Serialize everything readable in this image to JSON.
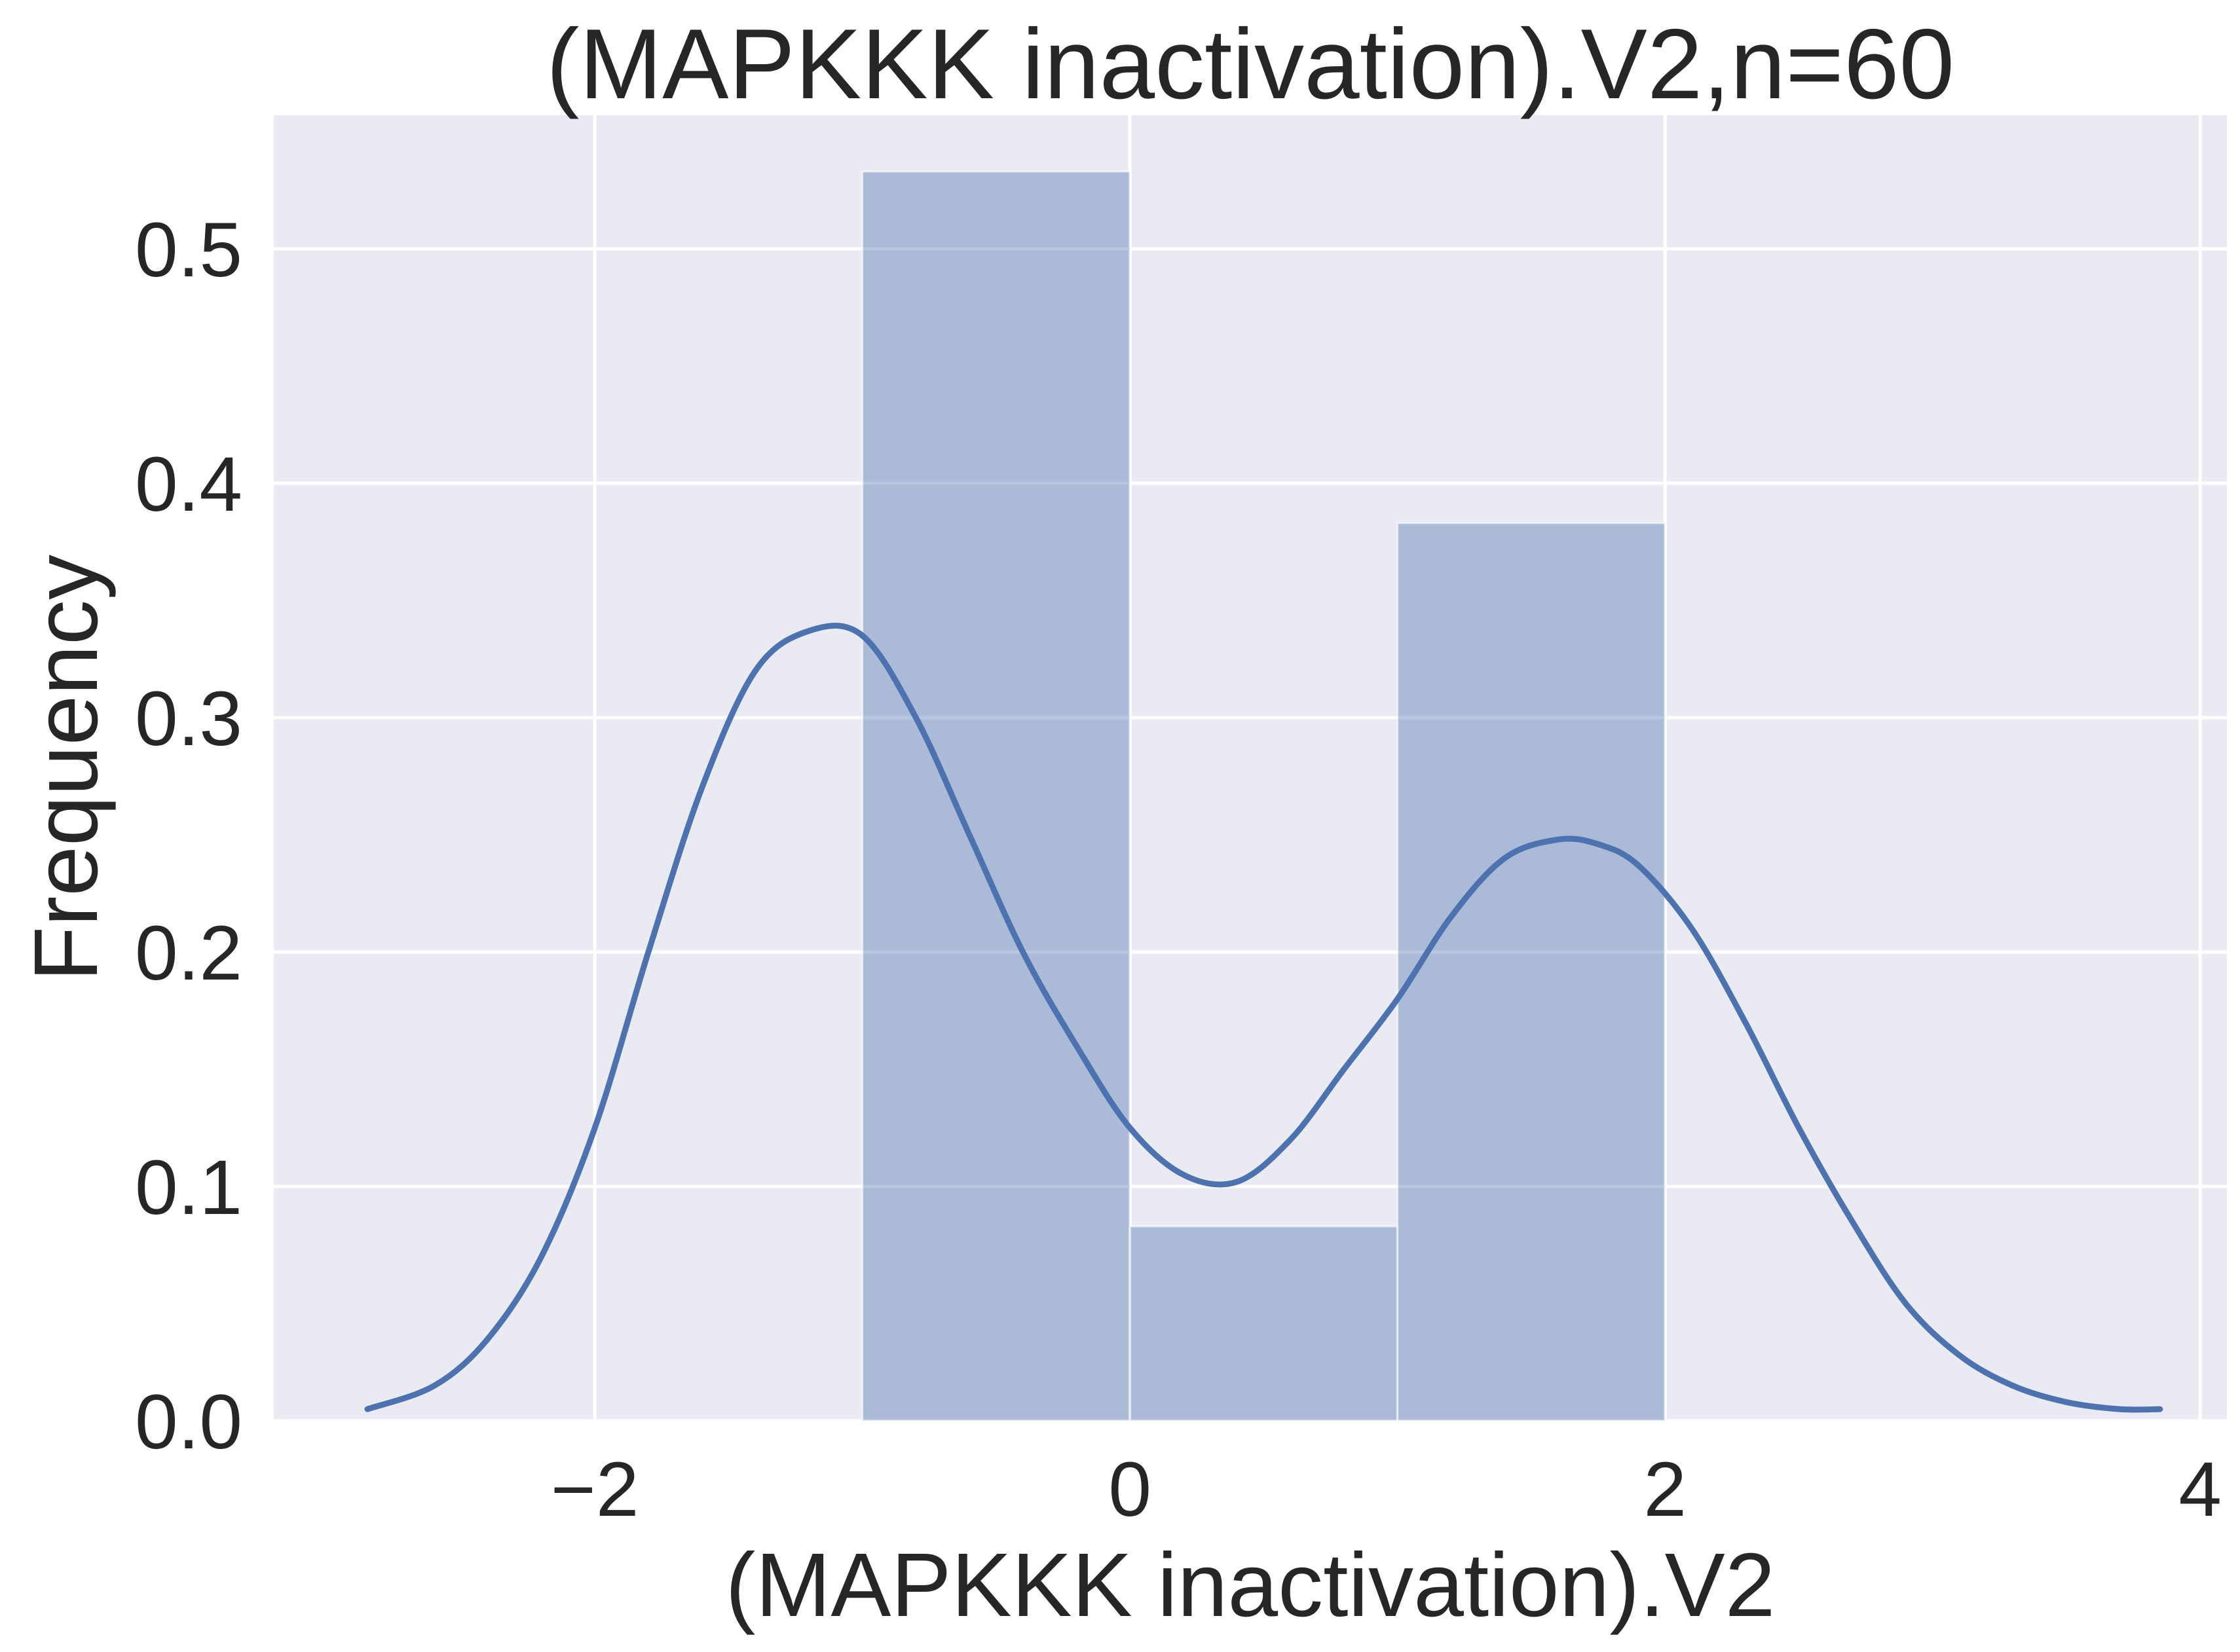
{
  "chart_data": {
    "type": "bar",
    "title": "(MAPKKK inactivation).V2,n=60",
    "xlabel": "(MAPKKK inactivation).V2",
    "ylabel": "Frequency",
    "xlim": [
      -3.2,
      4.1
    ],
    "ylim": [
      0,
      0.557
    ],
    "x_ticks": [
      -2,
      0,
      2,
      4
    ],
    "x_tick_labels": [
      "−2",
      "0",
      "2",
      "4"
    ],
    "y_ticks": [
      0.0,
      0.1,
      0.2,
      0.3,
      0.4,
      0.5
    ],
    "y_tick_labels": [
      "0.0",
      "0.1",
      "0.2",
      "0.3",
      "0.4",
      "0.5"
    ],
    "grid": true,
    "histogram": {
      "bin_edges": [
        -1.0,
        0.0,
        1.0,
        2.0
      ],
      "values": [
        0.533,
        0.083,
        0.383
      ]
    },
    "kde": {
      "x": [
        -2.85,
        -2.6,
        -2.4,
        -2.2,
        -2.0,
        -1.8,
        -1.6,
        -1.4,
        -1.2,
        -1.0,
        -0.8,
        -0.6,
        -0.4,
        -0.2,
        0.0,
        0.2,
        0.4,
        0.6,
        0.8,
        1.0,
        1.2,
        1.4,
        1.6,
        1.75,
        1.9,
        2.1,
        2.3,
        2.5,
        2.7,
        2.9,
        3.1,
        3.3,
        3.5,
        3.7,
        3.85
      ],
      "y": [
        0.005,
        0.015,
        0.035,
        0.07,
        0.125,
        0.2,
        0.27,
        0.32,
        0.337,
        0.335,
        0.3,
        0.25,
        0.2,
        0.16,
        0.125,
        0.105,
        0.102,
        0.12,
        0.15,
        0.18,
        0.215,
        0.24,
        0.248,
        0.246,
        0.237,
        0.21,
        0.17,
        0.125,
        0.085,
        0.05,
        0.028,
        0.015,
        0.008,
        0.005,
        0.005
      ]
    },
    "colors": {
      "background": "#eaeaf2",
      "grid": "#ffffff",
      "bar_fill": "#4c72b0",
      "bar_opacity": 0.4,
      "kde_line": "#4c72b0"
    }
  }
}
